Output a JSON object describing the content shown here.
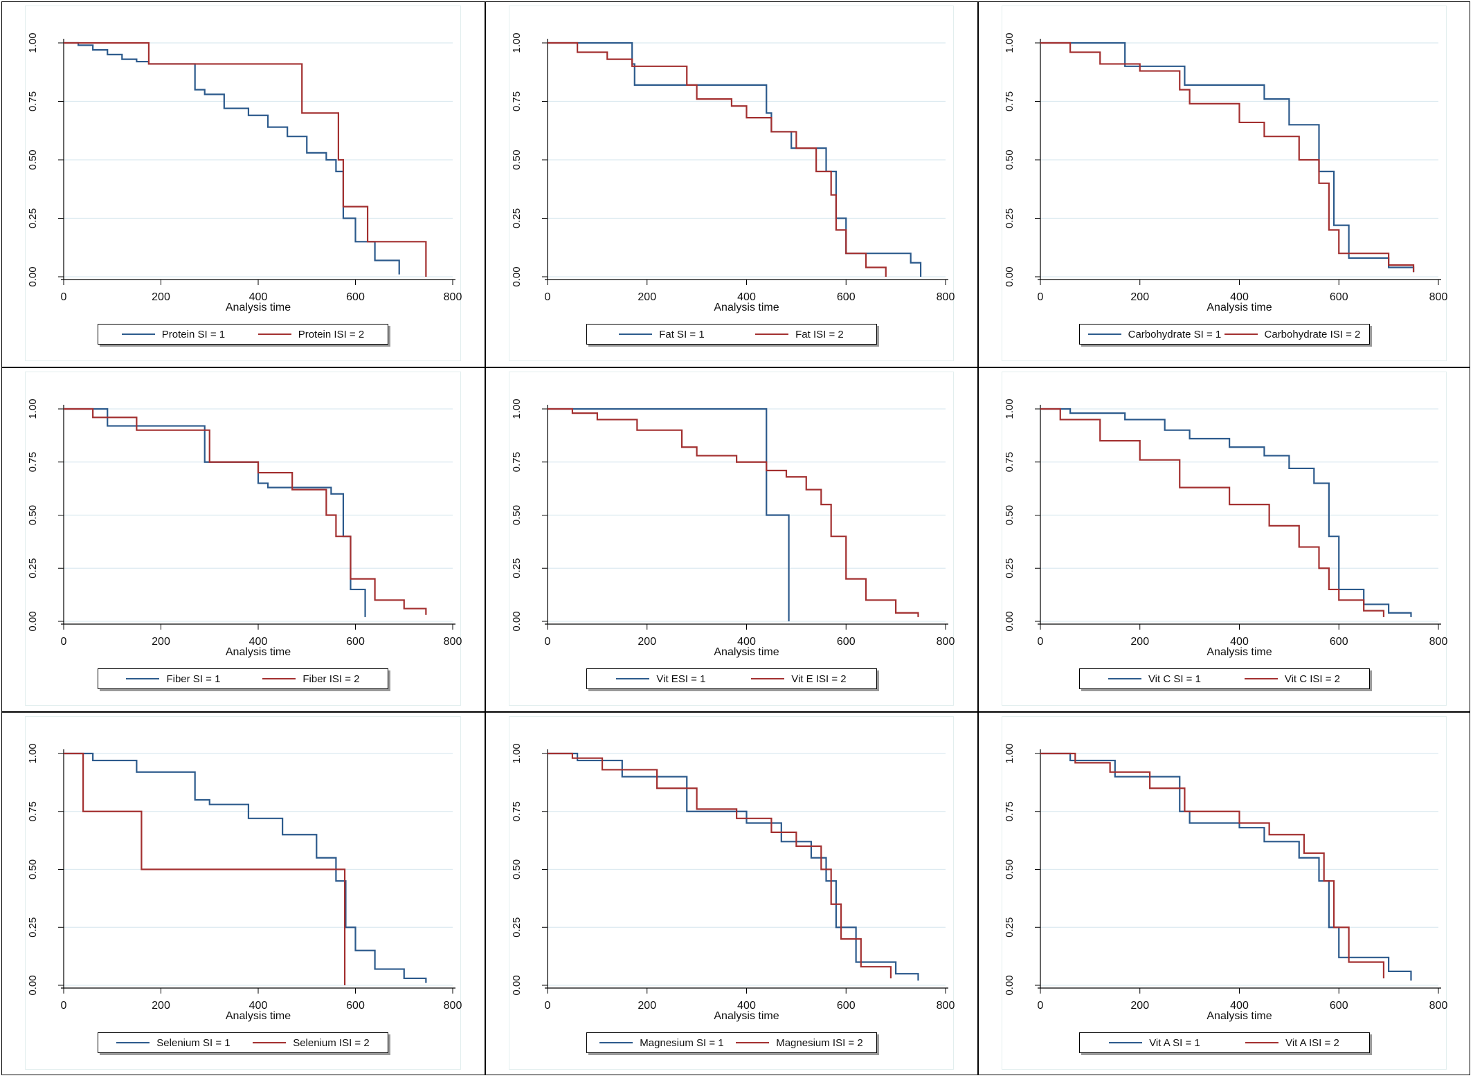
{
  "colors": {
    "si1": "#2c5a8c",
    "si2": "#a33030",
    "grid": "#dceaf0",
    "axis": "#000000"
  },
  "common": {
    "xlabel": "Analysis time",
    "x_ticks": [
      "0",
      "200",
      "400",
      "600",
      "800"
    ],
    "y_ticks": [
      "0.00",
      "0.25",
      "0.50",
      "0.75",
      "1.00"
    ],
    "xlim": [
      0,
      800
    ],
    "ylim": [
      0,
      1
    ]
  },
  "chart_data": [
    {
      "type": "line",
      "xlabel": "Analysis time",
      "ylabel": "",
      "xlim": [
        0,
        800
      ],
      "ylim": [
        0,
        1
      ],
      "legend": [
        "Protein SI = 1",
        "Protein ISI = 2"
      ],
      "series": [
        {
          "name": "Protein SI = 1",
          "x": [
            0,
            30,
            60,
            90,
            120,
            150,
            175,
            200,
            270,
            290,
            330,
            380,
            420,
            460,
            500,
            540,
            560,
            575,
            600,
            640,
            690
          ],
          "y": [
            1,
            0.99,
            0.97,
            0.95,
            0.93,
            0.92,
            0.91,
            0.91,
            0.8,
            0.78,
            0.72,
            0.69,
            0.64,
            0.6,
            0.53,
            0.5,
            0.45,
            0.25,
            0.15,
            0.07,
            0.01
          ]
        },
        {
          "name": "Protein ISI = 2",
          "x": [
            0,
            175,
            490,
            565,
            575,
            625,
            745
          ],
          "y": [
            1,
            0.91,
            0.7,
            0.5,
            0.3,
            0.15,
            0
          ]
        }
      ]
    },
    {
      "type": "line",
      "xlabel": "Analysis time",
      "ylabel": "",
      "xlim": [
        0,
        800
      ],
      "ylim": [
        0,
        1
      ],
      "legend": [
        "Fat SI = 1",
        "Fat ISI = 2"
      ],
      "series": [
        {
          "name": "Fat SI = 1",
          "x": [
            0,
            170,
            175,
            440,
            450,
            490,
            560,
            580,
            600,
            730,
            750
          ],
          "y": [
            1,
            0.91,
            0.82,
            0.7,
            0.62,
            0.55,
            0.45,
            0.25,
            0.1,
            0.06,
            0
          ]
        },
        {
          "name": "Fat ISI = 2",
          "x": [
            0,
            60,
            120,
            170,
            280,
            300,
            370,
            400,
            450,
            500,
            540,
            570,
            580,
            600,
            640,
            680
          ],
          "y": [
            1,
            0.96,
            0.93,
            0.9,
            0.82,
            0.76,
            0.73,
            0.68,
            0.62,
            0.55,
            0.45,
            0.35,
            0.2,
            0.1,
            0.04,
            0
          ]
        }
      ]
    },
    {
      "type": "line",
      "xlabel": "Analysis time",
      "ylabel": "",
      "xlim": [
        0,
        800
      ],
      "ylim": [
        0,
        1
      ],
      "legend": [
        "Carbohydrate SI = 1",
        "Carbohydrate ISI = 2"
      ],
      "series": [
        {
          "name": "Carbohydrate SI = 1",
          "x": [
            0,
            170,
            290,
            450,
            500,
            560,
            590,
            620,
            700,
            750
          ],
          "y": [
            1,
            0.9,
            0.82,
            0.76,
            0.65,
            0.45,
            0.22,
            0.08,
            0.04,
            0.02
          ]
        },
        {
          "name": "Carbohydrate ISI = 2",
          "x": [
            0,
            60,
            120,
            200,
            280,
            300,
            400,
            450,
            520,
            560,
            580,
            600,
            700,
            750
          ],
          "y": [
            1,
            0.96,
            0.91,
            0.88,
            0.8,
            0.74,
            0.66,
            0.6,
            0.5,
            0.4,
            0.2,
            0.1,
            0.05,
            0.02
          ]
        }
      ]
    },
    {
      "type": "line",
      "xlabel": "Analysis time",
      "ylabel": "",
      "xlim": [
        0,
        800
      ],
      "ylim": [
        0,
        1
      ],
      "legend": [
        "Fiber SI = 1",
        "Fiber ISI = 2"
      ],
      "series": [
        {
          "name": "Fiber SI = 1",
          "x": [
            0,
            90,
            290,
            400,
            420,
            550,
            575,
            590,
            620
          ],
          "y": [
            1,
            0.92,
            0.75,
            0.65,
            0.63,
            0.6,
            0.4,
            0.15,
            0.02
          ]
        },
        {
          "name": "Fiber ISI = 2",
          "x": [
            0,
            60,
            150,
            300,
            400,
            470,
            540,
            560,
            590,
            640,
            700,
            745
          ],
          "y": [
            1,
            0.96,
            0.9,
            0.75,
            0.7,
            0.62,
            0.5,
            0.4,
            0.2,
            0.1,
            0.06,
            0.03
          ]
        }
      ]
    },
    {
      "type": "line",
      "xlabel": "Analysis time",
      "ylabel": "",
      "xlim": [
        0,
        800
      ],
      "ylim": [
        0,
        1
      ],
      "legend": [
        "Vit ESI  = 1",
        "Vit E ISI = 2"
      ],
      "series": [
        {
          "name": "Vit ESI  = 1",
          "x": [
            0,
            440,
            485
          ],
          "y": [
            1,
            0.5,
            0
          ]
        },
        {
          "name": "Vit E ISI = 2",
          "x": [
            0,
            50,
            100,
            180,
            270,
            300,
            380,
            440,
            480,
            520,
            550,
            570,
            600,
            640,
            700,
            745
          ],
          "y": [
            1,
            0.98,
            0.95,
            0.9,
            0.82,
            0.78,
            0.75,
            0.71,
            0.68,
            0.62,
            0.55,
            0.4,
            0.2,
            0.1,
            0.04,
            0.02
          ]
        }
      ]
    },
    {
      "type": "line",
      "xlabel": "Analysis time",
      "ylabel": "",
      "xlim": [
        0,
        800
      ],
      "ylim": [
        0,
        1
      ],
      "legend": [
        "Vit C SI = 1",
        "Vit C ISI = 2"
      ],
      "series": [
        {
          "name": "Vit C SI = 1",
          "x": [
            0,
            60,
            170,
            250,
            300,
            380,
            450,
            500,
            550,
            580,
            600,
            650,
            700,
            745
          ],
          "y": [
            1,
            0.98,
            0.95,
            0.9,
            0.86,
            0.82,
            0.78,
            0.72,
            0.65,
            0.4,
            0.15,
            0.08,
            0.04,
            0.02
          ]
        },
        {
          "name": "Vit C ISI = 2",
          "x": [
            0,
            40,
            120,
            200,
            280,
            380,
            460,
            520,
            560,
            580,
            600,
            650,
            690
          ],
          "y": [
            1,
            0.95,
            0.85,
            0.76,
            0.63,
            0.55,
            0.45,
            0.35,
            0.25,
            0.15,
            0.1,
            0.05,
            0.02
          ]
        }
      ]
    },
    {
      "type": "line",
      "xlabel": "Analysis time",
      "ylabel": "",
      "xlim": [
        0,
        800
      ],
      "ylim": [
        0,
        1
      ],
      "legend": [
        "Selenium SI = 1",
        "Selenium ISI = 2"
      ],
      "series": [
        {
          "name": "Selenium SI = 1",
          "x": [
            0,
            60,
            150,
            270,
            300,
            380,
            450,
            520,
            560,
            580,
            600,
            640,
            700,
            745
          ],
          "y": [
            1,
            0.97,
            0.92,
            0.8,
            0.78,
            0.72,
            0.65,
            0.55,
            0.45,
            0.25,
            0.15,
            0.07,
            0.03,
            0.01
          ]
        },
        {
          "name": "Selenium ISI = 2",
          "x": [
            0,
            40,
            160,
            575,
            578
          ],
          "y": [
            1,
            0.75,
            0.5,
            0.5,
            0
          ]
        }
      ]
    },
    {
      "type": "line",
      "xlabel": "Analysis time",
      "ylabel": "",
      "xlim": [
        0,
        800
      ],
      "ylim": [
        0,
        1
      ],
      "legend": [
        "Magnesium SI = 1",
        "Magnesium ISI = 2"
      ],
      "series": [
        {
          "name": "Magnesium SI = 1",
          "x": [
            0,
            60,
            150,
            280,
            400,
            470,
            530,
            560,
            580,
            620,
            700,
            745
          ],
          "y": [
            1,
            0.97,
            0.9,
            0.75,
            0.7,
            0.62,
            0.55,
            0.45,
            0.25,
            0.1,
            0.05,
            0.02
          ]
        },
        {
          "name": "Magnesium ISI = 2",
          "x": [
            0,
            50,
            110,
            220,
            300,
            380,
            450,
            500,
            550,
            570,
            590,
            630,
            690
          ],
          "y": [
            1,
            0.98,
            0.93,
            0.85,
            0.76,
            0.72,
            0.66,
            0.6,
            0.5,
            0.35,
            0.2,
            0.08,
            0.03
          ]
        }
      ]
    },
    {
      "type": "line",
      "xlabel": "Analysis time",
      "ylabel": "",
      "xlim": [
        0,
        800
      ],
      "ylim": [
        0,
        1
      ],
      "legend": [
        "Vit A SI = 1",
        "Vit A ISI = 2"
      ],
      "series": [
        {
          "name": "Vit A SI = 1",
          "x": [
            0,
            60,
            150,
            280,
            300,
            400,
            450,
            520,
            560,
            580,
            600,
            700,
            745
          ],
          "y": [
            1,
            0.97,
            0.9,
            0.75,
            0.7,
            0.68,
            0.62,
            0.55,
            0.45,
            0.25,
            0.12,
            0.06,
            0.02
          ]
        },
        {
          "name": "Vit A ISI = 2",
          "x": [
            0,
            70,
            140,
            220,
            290,
            400,
            460,
            530,
            570,
            590,
            620,
            690
          ],
          "y": [
            1,
            0.96,
            0.92,
            0.85,
            0.75,
            0.7,
            0.65,
            0.57,
            0.45,
            0.25,
            0.1,
            0.03
          ]
        }
      ]
    }
  ]
}
